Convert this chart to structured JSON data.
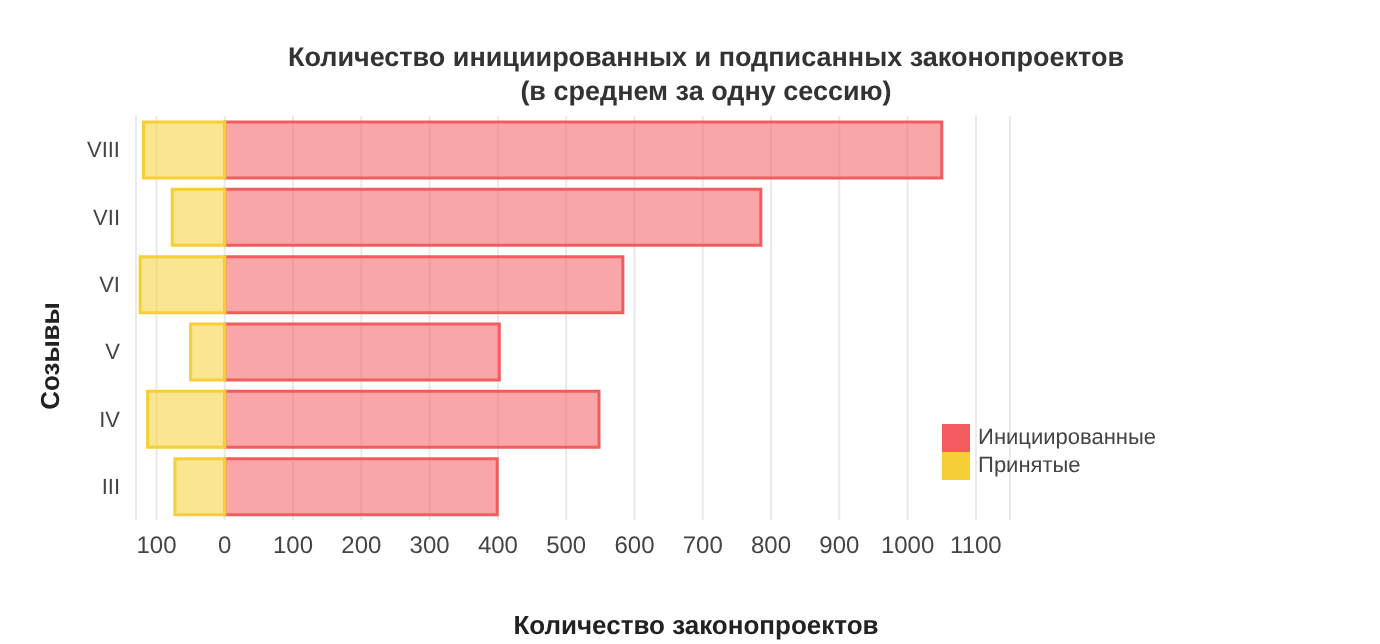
{
  "chart_data": {
    "type": "bar",
    "orientation": "horizontal",
    "stacked": true,
    "title": "Количество инициированных и подписанных законопроектов\n(в среднем за одну сессию)",
    "xlabel": "Количество законопроектов",
    "ylabel": "Созывы",
    "categories": [
      "VIII",
      "VII",
      "VI",
      "V",
      "IV",
      "III"
    ],
    "series": [
      {
        "name": "Инициированные",
        "color": "#f25c5f",
        "values": [
          1050,
          785,
          583,
          402,
          548,
          399
        ]
      },
      {
        "name": "Принятые",
        "color": "#f5cf35",
        "values": [
          -119,
          -77,
          -124,
          -50,
          -113,
          -73
        ]
      }
    ],
    "xlim": [
      -130,
      1150
    ],
    "xticks": [
      {
        "value": -100,
        "label": "100"
      },
      0,
      100,
      200,
      300,
      400,
      500,
      600,
      700,
      800,
      900,
      1000,
      1100
    ],
    "grid": "x",
    "legend": "bottom right"
  }
}
